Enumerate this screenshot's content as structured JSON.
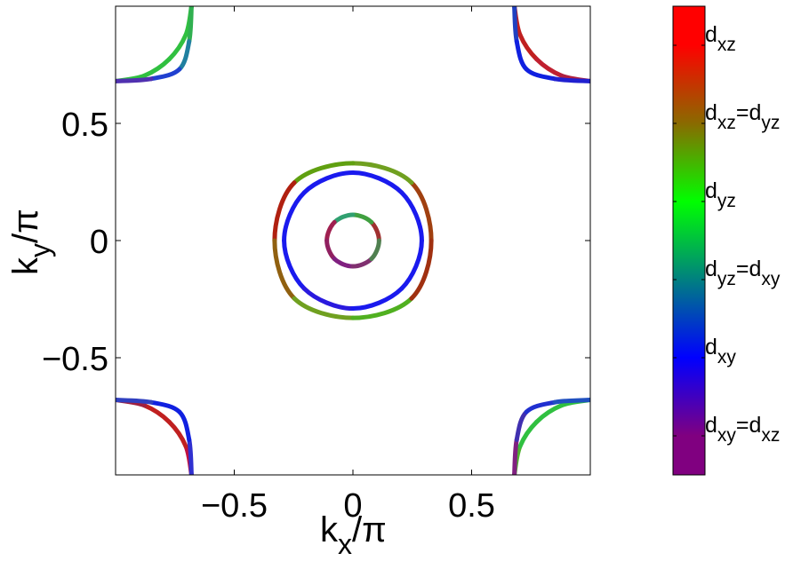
{
  "chart_data": {
    "type": "fermi-surface",
    "xlim": [
      -1,
      1
    ],
    "ylim": [
      -1,
      1
    ],
    "xticks": [
      {
        "value": -0.5,
        "label": "−0.5"
      },
      0,
      0.5
    ],
    "yticks": [
      {
        "value": -0.5,
        "label": "−0.5"
      },
      0,
      0.5
    ],
    "xlabel": [
      "k",
      "x",
      "/π"
    ],
    "ylabel": [
      "k",
      "y",
      "/π"
    ],
    "series": [
      {
        "closed": true,
        "x": [
          0.11,
          0.078,
          0,
          -0.078,
          -0.11,
          -0.078,
          0,
          0.078
        ],
        "y": [
          0,
          0.078,
          0.11,
          0.078,
          0,
          -0.078,
          -0.11,
          -0.078
        ],
        "colors": [
          "#a03030",
          "#40a040",
          "#30a070",
          "#a02050",
          "#902060",
          "#802080",
          "#803070",
          "#508050"
        ]
      },
      {
        "closed": true,
        "x": [
          0.29,
          0.205,
          0,
          -0.205,
          -0.29,
          -0.205,
          0,
          0.205
        ],
        "y": [
          0,
          0.205,
          0.29,
          0.205,
          0,
          -0.205,
          -0.29,
          -0.205
        ],
        "colors": [
          "#1a1aee",
          "#1a1aee",
          "#1a1aee",
          "#1a1aee",
          "#1a1aee",
          "#2a1ade",
          "#1a1aee",
          "#1a1aee"
        ]
      },
      {
        "closed": true,
        "x": [
          0.33,
          0.247,
          0,
          -0.247,
          -0.33,
          -0.247,
          0,
          0.247
        ],
        "y": [
          0,
          0.247,
          0.33,
          0.247,
          0,
          -0.247,
          -0.33,
          -0.247
        ],
        "colors": [
          "#a04010",
          "#70a020",
          "#60a010",
          "#b02010",
          "#906010",
          "#70a020",
          "#50b020",
          "#a03010"
        ]
      },
      {
        "closed": false,
        "x": [
          -0.68,
          -0.704,
          -0.774,
          -0.878,
          -1
        ],
        "y": [
          1,
          0.878,
          0.774,
          0.704,
          0.68
        ],
        "colors": [
          "#30c040",
          "#30c040",
          "#30c040",
          "#30c040",
          "#30c040"
        ]
      },
      {
        "closed": false,
        "x": [
          -0.68,
          -0.69,
          -0.731,
          -0.85,
          -1
        ],
        "y": [
          1,
          0.85,
          0.731,
          0.69,
          0.68
        ],
        "colors": [
          "#30b050",
          "#2080a0",
          "#2040d0",
          "#5030b0",
          "#801080"
        ]
      },
      {
        "closed": false,
        "x": [
          0.68,
          0.704,
          0.774,
          0.878,
          1
        ],
        "y": [
          1,
          0.878,
          0.774,
          0.704,
          0.68
        ],
        "colors": [
          "#c02020",
          "#c02020",
          "#c02030",
          "#b02040",
          "#902060"
        ]
      },
      {
        "closed": false,
        "x": [
          0.68,
          0.69,
          0.731,
          0.85,
          1
        ],
        "y": [
          1,
          0.85,
          0.731,
          0.69,
          0.68
        ],
        "colors": [
          "#2040c0",
          "#1020e0",
          "#1020e0",
          "#2020d0",
          "#4020b0"
        ]
      },
      {
        "closed": false,
        "x": [
          -0.68,
          -0.704,
          -0.774,
          -0.878,
          -1
        ],
        "y": [
          -1,
          -0.878,
          -0.774,
          -0.704,
          -0.68
        ],
        "colors": [
          "#c01040",
          "#c02020",
          "#c02020",
          "#a02040",
          "#902060"
        ]
      },
      {
        "closed": false,
        "x": [
          -0.68,
          -0.69,
          -0.731,
          -0.85,
          -1
        ],
        "y": [
          -1,
          -0.85,
          -0.731,
          -0.69,
          -0.68
        ],
        "colors": [
          "#3030d0",
          "#1020e0",
          "#1020e0",
          "#3040c0",
          "#5060a0"
        ]
      },
      {
        "closed": false,
        "x": [
          0.68,
          0.704,
          0.774,
          0.878,
          1
        ],
        "y": [
          -1,
          -0.878,
          -0.774,
          -0.704,
          -0.68
        ],
        "colors": [
          "#50b030",
          "#30c040",
          "#30c040",
          "#30c040",
          "#30b050"
        ]
      },
      {
        "closed": false,
        "x": [
          0.68,
          0.69,
          0.731,
          0.85,
          1
        ],
        "y": [
          -1,
          -0.85,
          -0.731,
          -0.69,
          -0.68
        ],
        "colors": [
          "#802080",
          "#4030b0",
          "#2030d0",
          "#2050c0",
          "#2080a0"
        ]
      }
    ],
    "colorbar": {
      "colors": [
        "#ff0000",
        "#8a6a00",
        "#00ff00",
        "#008080",
        "#0000ff",
        "#800080"
      ],
      "labels": [
        [
          "d",
          "xz"
        ],
        [
          "d",
          "xz",
          "=d",
          "yz"
        ],
        [
          "d",
          "yz"
        ],
        [
          "d",
          "yz",
          "=d",
          "xy"
        ],
        [
          "d",
          "xy"
        ],
        [
          "d",
          "xy",
          "=d",
          "xz"
        ]
      ]
    }
  }
}
